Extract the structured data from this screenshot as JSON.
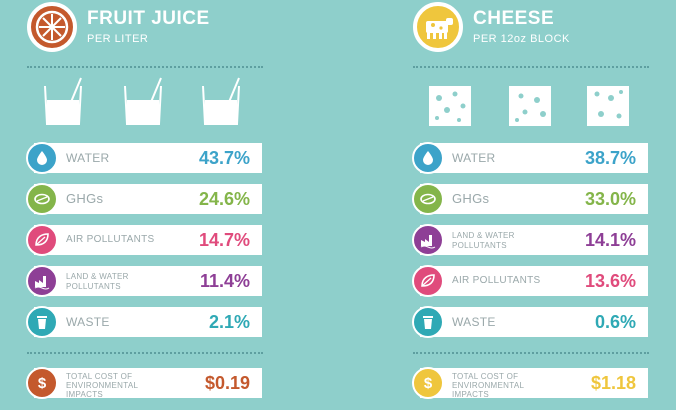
{
  "colors": {
    "background": "#8ecfcb",
    "water": "#3ca3c9",
    "ghg": "#84b54a",
    "air": "#e04b7c",
    "landwater": "#8e3f96",
    "waste": "#2fa9b5",
    "juice_accent": "#c4592d",
    "cheese_accent": "#efc63d"
  },
  "juice": {
    "title": "FRUIT JUICE",
    "subtitle": "PER LITER",
    "icon": "orange-slice-icon",
    "rows": [
      {
        "label": "WATER",
        "value": "43.7%",
        "icon": "water-drop-icon"
      },
      {
        "label": "GHGs",
        "value": "24.6%",
        "icon": "leaf-icon"
      },
      {
        "label": "AIR POLLUTANTS",
        "value": "14.7%",
        "icon": "leaf-icon"
      },
      {
        "label": "LAND & WATER POLLUTANTS",
        "value": "11.4%",
        "icon": "factory-icon"
      },
      {
        "label": "WASTE",
        "value": "2.1%",
        "icon": "trash-can-icon"
      }
    ],
    "total": {
      "label": "TOTAL COST OF ENVIRONMENTAL IMPACTS",
      "value": "$0.19",
      "icon": "dollar-icon"
    }
  },
  "cheese": {
    "title": "CHEESE",
    "subtitle": "PER 12oz BLOCK",
    "icon": "cow-icon",
    "rows": [
      {
        "label": "WATER",
        "value": "38.7%",
        "icon": "water-drop-icon"
      },
      {
        "label": "GHGs",
        "value": "33.0%",
        "icon": "leaf-icon"
      },
      {
        "label": "LAND & WATER POLLUTANTS",
        "value": "14.1%",
        "icon": "factory-icon"
      },
      {
        "label": "AIR POLLUTANTS",
        "value": "13.6%",
        "icon": "leaf-icon"
      },
      {
        "label": "WASTE",
        "value": "0.6%",
        "icon": "trash-can-icon"
      }
    ],
    "total": {
      "label": "TOTAL COST OF ENVIRONMENTAL IMPACTS",
      "value": "$1.18",
      "icon": "dollar-icon"
    }
  }
}
